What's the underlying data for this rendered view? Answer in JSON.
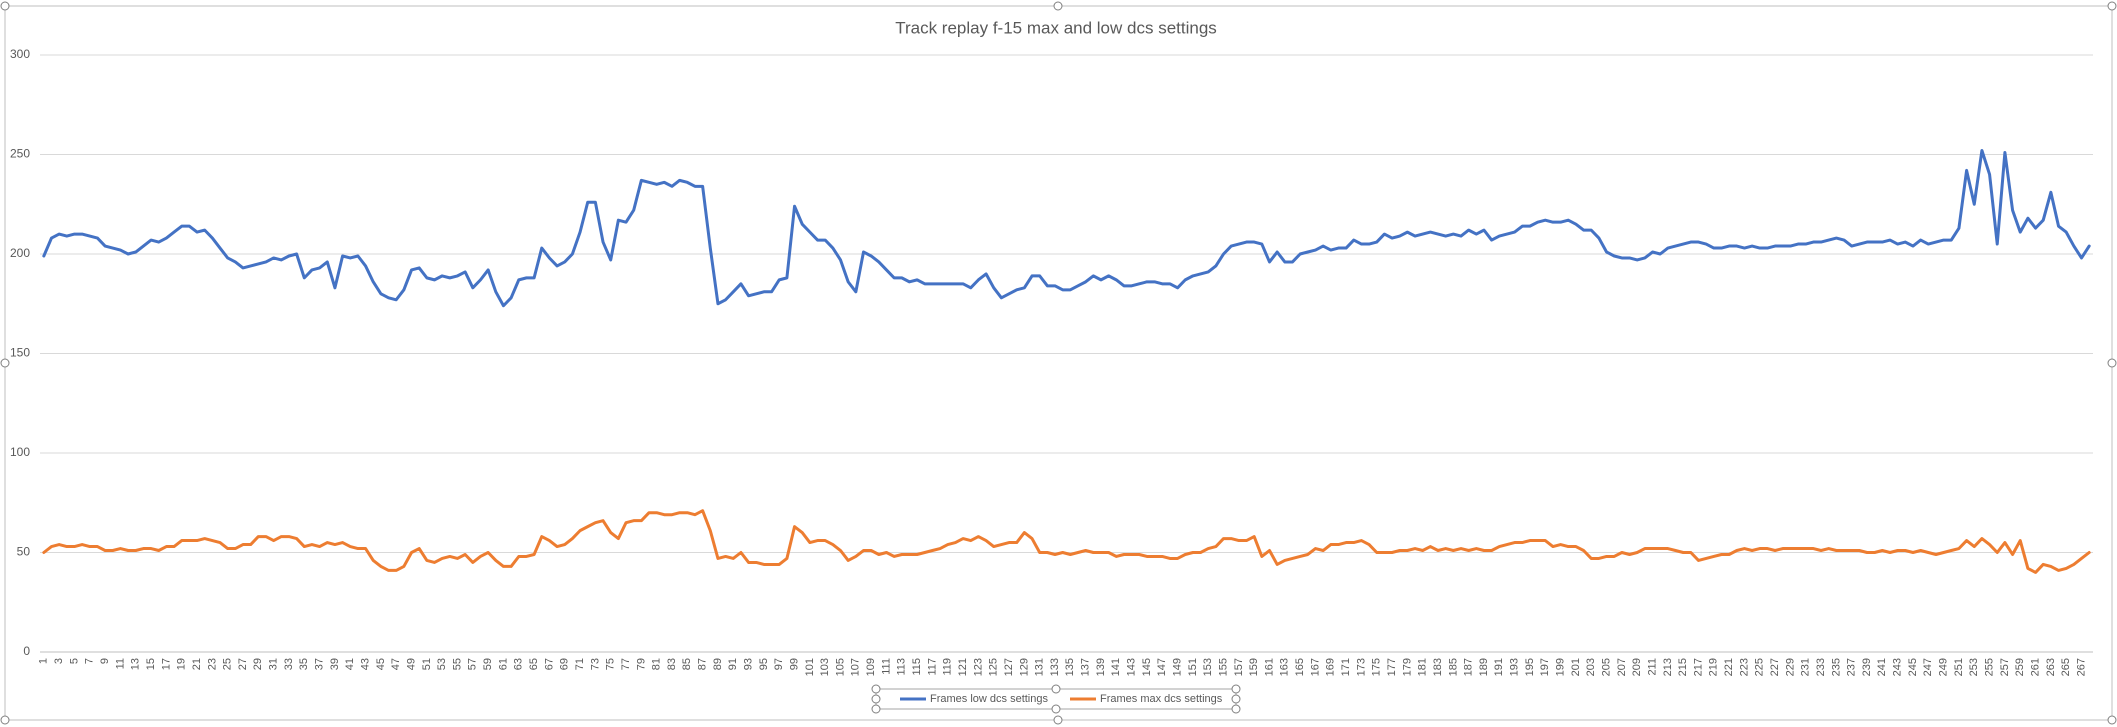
{
  "chart_data": {
    "type": "line",
    "title": "Track replay f-15 max and low dcs settings",
    "categories": [
      1,
      null,
      3,
      null,
      5,
      null,
      7,
      null,
      9,
      null,
      11,
      null,
      13,
      null,
      15,
      null,
      17,
      null,
      19,
      null,
      21,
      null,
      23,
      null,
      25,
      null,
      27,
      null,
      29,
      null,
      31,
      null,
      33,
      null,
      35,
      null,
      37,
      null,
      39,
      null,
      41,
      null,
      43,
      null,
      45,
      null,
      47,
      null,
      49,
      null,
      51,
      null,
      53,
      null,
      55,
      null,
      57,
      null,
      59,
      null,
      61,
      null,
      63,
      null,
      65,
      null,
      67,
      null,
      69,
      null,
      71,
      null,
      73,
      null,
      75,
      null,
      77,
      null,
      79,
      null,
      81,
      null,
      83,
      null,
      85,
      null,
      87,
      null,
      89,
      null,
      91,
      null,
      93,
      null,
      95,
      null,
      97,
      null,
      99,
      null,
      101,
      null,
      103,
      null,
      105,
      null,
      107,
      null,
      109,
      null,
      111,
      null,
      113,
      null,
      115,
      null,
      117,
      null,
      119,
      null,
      121,
      null,
      123,
      null,
      125,
      null,
      127,
      null,
      129,
      null,
      131,
      null,
      133,
      null,
      135,
      null,
      137,
      null,
      139,
      null,
      141,
      null,
      143,
      null,
      145,
      null,
      147,
      null,
      149,
      null,
      151,
      null,
      153,
      null,
      155,
      null,
      157,
      null,
      159,
      null,
      161,
      null,
      163,
      null,
      165,
      null,
      167,
      null,
      169,
      null,
      171,
      null,
      173,
      null,
      175,
      null,
      177,
      null,
      179,
      null,
      181,
      null,
      183,
      null,
      185,
      null,
      187,
      null,
      189,
      null,
      191,
      null,
      193,
      null,
      195,
      null,
      197,
      null,
      199,
      null,
      201,
      null,
      203,
      null,
      205,
      null,
      207,
      null,
      209,
      null,
      211,
      null,
      213,
      null,
      215,
      null,
      217,
      null,
      219,
      null,
      221,
      null,
      223,
      null,
      225,
      null,
      227,
      null,
      229,
      null,
      231,
      null,
      233,
      null,
      235,
      null,
      237,
      null,
      239,
      null,
      241,
      null,
      243,
      null,
      245,
      null,
      247,
      null,
      249,
      null,
      251,
      null,
      253,
      null,
      255,
      null,
      257,
      null,
      259,
      null,
      261,
      null,
      263,
      null,
      265,
      null,
      267,
      null
    ],
    "series": [
      {
        "name": "Frames low dcs settings",
        "color": "#4472c4",
        "values": [
          199,
          208,
          210,
          209,
          210,
          210,
          209,
          208,
          204,
          203,
          202,
          200,
          201,
          204,
          207,
          206,
          208,
          211,
          214,
          214,
          211,
          212,
          208,
          203,
          198,
          196,
          193,
          194,
          195,
          196,
          198,
          197,
          199,
          200,
          188,
          192,
          193,
          196,
          183,
          199,
          198,
          199,
          194,
          186,
          180,
          178,
          177,
          182,
          192,
          193,
          188,
          187,
          189,
          188,
          189,
          191,
          183,
          187,
          192,
          181,
          174,
          178,
          187,
          188,
          188,
          203,
          198,
          194,
          196,
          200,
          211,
          226,
          226,
          206,
          197,
          217,
          216,
          222,
          237,
          236,
          235,
          236,
          234,
          237,
          236,
          234,
          234,
          203,
          175,
          177,
          181,
          185,
          179,
          180,
          181,
          181,
          187,
          188,
          224,
          215,
          211,
          207,
          207,
          203,
          197,
          186,
          181,
          201,
          199,
          196,
          192,
          188,
          188,
          186,
          187,
          185,
          185,
          185,
          185,
          185,
          185,
          183,
          187,
          190,
          183,
          178,
          180,
          182,
          183,
          189,
          189,
          184,
          184,
          182,
          182,
          184,
          186,
          189,
          187,
          189,
          187,
          184,
          184,
          185,
          186,
          186,
          185,
          185,
          183,
          187,
          189,
          190,
          191,
          194,
          200,
          204,
          205,
          206,
          206,
          205,
          196,
          201,
          196,
          196,
          200,
          201,
          202,
          204,
          202,
          203,
          203,
          207,
          205,
          205,
          206,
          210,
          208,
          209,
          211,
          209,
          210,
          211,
          210,
          209,
          210,
          209,
          212,
          210,
          212,
          207,
          209,
          210,
          211,
          214,
          214,
          216,
          217,
          216,
          216,
          217,
          215,
          212,
          212,
          208,
          201,
          199,
          198,
          198,
          197,
          198,
          201,
          200,
          203,
          204,
          205,
          206,
          206,
          205,
          203,
          203,
          204,
          204,
          203,
          204,
          203,
          203,
          204,
          204,
          204,
          205,
          205,
          206,
          206,
          207,
          208,
          207,
          204,
          205,
          206,
          206,
          206,
          207,
          205,
          206,
          204,
          207,
          205,
          206,
          207,
          207,
          213,
          242,
          225,
          252,
          240,
          205,
          251,
          222,
          211,
          218,
          213,
          217,
          231,
          214,
          211,
          204,
          198,
          204
        ]
      },
      {
        "name": "Frames max dcs settings",
        "color": "#ed7d31",
        "values": [
          50,
          53,
          54,
          53,
          53,
          54,
          53,
          53,
          51,
          51,
          52,
          51,
          51,
          52,
          52,
          51,
          53,
          53,
          56,
          56,
          56,
          57,
          56,
          55,
          52,
          52,
          54,
          54,
          58,
          58,
          56,
          58,
          58,
          57,
          53,
          54,
          53,
          55,
          54,
          55,
          53,
          52,
          52,
          46,
          43,
          41,
          41,
          43,
          50,
          52,
          46,
          45,
          47,
          48,
          47,
          49,
          45,
          48,
          50,
          46,
          43,
          43,
          48,
          48,
          49,
          58,
          56,
          53,
          54,
          57,
          61,
          63,
          65,
          66,
          60,
          57,
          65,
          66,
          66,
          70,
          70,
          69,
          69,
          70,
          70,
          69,
          71,
          61,
          47,
          48,
          47,
          50,
          45,
          45,
          44,
          44,
          44,
          47,
          63,
          60,
          55,
          56,
          56,
          54,
          51,
          46,
          48,
          51,
          51,
          49,
          50,
          48,
          49,
          49,
          49,
          50,
          51,
          52,
          54,
          55,
          57,
          56,
          58,
          56,
          53,
          54,
          55,
          55,
          60,
          57,
          50,
          50,
          49,
          50,
          49,
          50,
          51,
          50,
          50,
          50,
          48,
          49,
          49,
          49,
          48,
          48,
          48,
          47,
          47,
          49,
          50,
          50,
          52,
          53,
          57,
          57,
          56,
          56,
          58,
          48,
          51,
          44,
          46,
          47,
          48,
          49,
          52,
          51,
          54,
          54,
          55,
          55,
          56,
          54,
          50,
          50,
          50,
          51,
          51,
          52,
          51,
          53,
          51,
          52,
          51,
          52,
          51,
          52,
          51,
          51,
          53,
          54,
          55,
          55,
          56,
          56,
          56,
          53,
          54,
          53,
          53,
          51,
          47,
          47,
          48,
          48,
          50,
          49,
          50,
          52,
          52,
          52,
          52,
          51,
          50,
          50,
          46,
          47,
          48,
          49,
          49,
          51,
          52,
          51,
          52,
          52,
          51,
          52,
          52,
          52,
          52,
          52,
          51,
          52,
          51,
          51,
          51,
          51,
          50,
          50,
          51,
          50,
          51,
          51,
          50,
          51,
          50,
          49,
          50,
          51,
          52,
          56,
          53,
          57,
          54,
          50,
          55,
          49,
          56,
          42,
          40,
          44,
          43,
          41,
          42,
          44,
          47,
          50
        ]
      }
    ],
    "ylim": [
      0,
      300
    ],
    "yticks": [
      0,
      50,
      100,
      150,
      200,
      250,
      300
    ],
    "grid": true,
    "legend": "bottom"
  }
}
